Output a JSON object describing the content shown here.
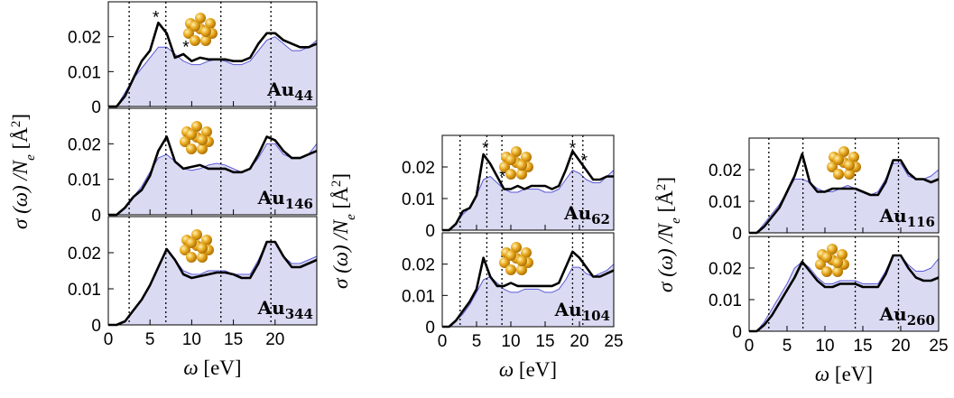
{
  "chart_data": [
    {
      "type": "line",
      "ylabel": [
        "σ (ω) /N",
        "e",
        " [Å",
        "2",
        "]"
      ],
      "xlabel": [
        "ω",
        " [eV]"
      ],
      "xlim": [
        0,
        25
      ],
      "xticks": [
        0,
        5,
        10,
        15,
        20
      ],
      "ylim": [
        0,
        0.03
      ],
      "yticks": [
        0,
        0.01,
        0.02
      ],
      "vlines": [
        2.5,
        6.9,
        13.5,
        19.5
      ],
      "panels": [
        {
          "label": "Au",
          "label_sub": "44",
          "markers": [
            {
              "x": 5.7,
              "y": 0.0265,
              "text": "*"
            },
            {
              "x": 9.3,
              "y": 0.018,
              "text": "*"
            }
          ],
          "x": [
            0,
            1,
            2,
            3,
            4,
            5,
            6,
            7,
            8,
            9,
            10,
            11,
            12,
            13,
            14,
            15,
            16,
            17,
            18,
            19,
            20,
            21,
            22,
            23,
            24,
            25
          ],
          "series": [
            {
              "color": "#5a5ad6",
              "fill": "#dadaf3",
              "values": [
                0,
                0,
                0.004,
                0.008,
                0.011,
                0.014,
                0.017,
                0.017,
                0.015,
                0.013,
                0.012,
                0.012,
                0.013,
                0.0135,
                0.013,
                0.012,
                0.012,
                0.013,
                0.016,
                0.019,
                0.02,
                0.018,
                0.016,
                0.016,
                0.017,
                0.019
              ]
            },
            {
              "color": "#000000",
              "values": [
                0,
                0,
                0.003,
                0.008,
                0.013,
                0.016,
                0.024,
                0.021,
                0.014,
                0.015,
                0.013,
                0.014,
                0.0135,
                0.0135,
                0.0135,
                0.013,
                0.013,
                0.014,
                0.018,
                0.021,
                0.021,
                0.019,
                0.018,
                0.017,
                0.017,
                0.018
              ]
            }
          ]
        },
        {
          "label": "Au",
          "label_sub": "146",
          "x": [
            0,
            1,
            2,
            3,
            4,
            5,
            6,
            7,
            8,
            9,
            10,
            11,
            12,
            13,
            14,
            15,
            16,
            17,
            18,
            19,
            20,
            21,
            22,
            23,
            24,
            25
          ],
          "series": [
            {
              "color": "#5a5ad6",
              "fill": "#dadaf3",
              "values": [
                0,
                0,
                0.002,
                0.005,
                0.008,
                0.012,
                0.016,
                0.017,
                0.015,
                0.013,
                0.0125,
                0.013,
                0.014,
                0.0145,
                0.014,
                0.013,
                0.012,
                0.013,
                0.016,
                0.02,
                0.02,
                0.017,
                0.016,
                0.016,
                0.017,
                0.02
              ]
            },
            {
              "color": "#000000",
              "values": [
                0,
                0,
                0.002,
                0.005,
                0.007,
                0.011,
                0.018,
                0.022,
                0.015,
                0.013,
                0.0135,
                0.014,
                0.013,
                0.013,
                0.013,
                0.012,
                0.012,
                0.013,
                0.017,
                0.022,
                0.021,
                0.018,
                0.016,
                0.016,
                0.017,
                0.018
              ]
            }
          ]
        },
        {
          "label": "Au",
          "label_sub": "344",
          "x": [
            0,
            1,
            2,
            3,
            4,
            5,
            6,
            7,
            8,
            9,
            10,
            11,
            12,
            13,
            14,
            15,
            16,
            17,
            18,
            19,
            20,
            21,
            22,
            23,
            24,
            25
          ],
          "series": [
            {
              "color": "#5a5ad6",
              "fill": "#dadaf3",
              "values": [
                0,
                0,
                0.001,
                0.004,
                0.007,
                0.011,
                0.016,
                0.021,
                0.018,
                0.015,
                0.014,
                0.014,
                0.015,
                0.015,
                0.015,
                0.014,
                0.014,
                0.014,
                0.018,
                0.023,
                0.023,
                0.019,
                0.017,
                0.017,
                0.018,
                0.019
              ]
            },
            {
              "color": "#000000",
              "values": [
                0,
                0,
                0.001,
                0.004,
                0.007,
                0.011,
                0.016,
                0.021,
                0.018,
                0.014,
                0.013,
                0.0135,
                0.014,
                0.0145,
                0.0145,
                0.014,
                0.013,
                0.013,
                0.017,
                0.023,
                0.023,
                0.019,
                0.016,
                0.016,
                0.017,
                0.018
              ]
            }
          ]
        }
      ]
    },
    {
      "type": "line",
      "ylabel": [
        "σ (ω) /N",
        "e",
        " [Å",
        "2",
        "]"
      ],
      "xlabel": [
        "ω",
        " [eV]"
      ],
      "xlim": [
        0,
        25
      ],
      "xticks": [
        0,
        5,
        10,
        15,
        20,
        25
      ],
      "ylim": [
        0,
        0.03
      ],
      "yticks": [
        0,
        0.01,
        0.02
      ],
      "vlines": [
        2.6,
        6.5,
        8.7,
        19,
        20.5
      ],
      "panels": [
        {
          "label": "Au",
          "label_sub": "62",
          "markers": [
            {
              "x": 6.3,
              "y": 0.027,
              "text": "*"
            },
            {
              "x": 8.8,
              "y": 0.018,
              "text": "*"
            },
            {
              "x": 19,
              "y": 0.027,
              "text": "*"
            },
            {
              "x": 20.7,
              "y": 0.023,
              "text": "*"
            }
          ],
          "x": [
            0,
            1,
            2,
            3,
            4,
            5,
            6,
            7,
            8,
            9,
            10,
            11,
            12,
            13,
            14,
            15,
            16,
            17,
            18,
            19,
            20,
            21,
            22,
            23,
            24,
            25
          ],
          "series": [
            {
              "color": "#5a5ad6",
              "fill": "#dadaf3",
              "values": [
                0,
                0,
                0.002,
                0.005,
                0.007,
                0.011,
                0.016,
                0.017,
                0.015,
                0.013,
                0.012,
                0.012,
                0.013,
                0.013,
                0.013,
                0.012,
                0.012,
                0.013,
                0.016,
                0.019,
                0.018,
                0.016,
                0.015,
                0.015,
                0.017,
                0.019
              ]
            },
            {
              "color": "#000000",
              "values": [
                0,
                0,
                0.002,
                0.006,
                0.007,
                0.011,
                0.024,
                0.021,
                0.017,
                0.013,
                0.013,
                0.014,
                0.013,
                0.014,
                0.014,
                0.014,
                0.013,
                0.014,
                0.019,
                0.025,
                0.022,
                0.019,
                0.016,
                0.016,
                0.017,
                0.017
              ]
            }
          ]
        },
        {
          "label": "Au",
          "label_sub": "104",
          "x": [
            0,
            1,
            2,
            3,
            4,
            5,
            6,
            7,
            8,
            9,
            10,
            11,
            12,
            13,
            14,
            15,
            16,
            17,
            18,
            19,
            20,
            21,
            22,
            23,
            24,
            25
          ],
          "series": [
            {
              "color": "#5a5ad6",
              "fill": "#dadaf3",
              "values": [
                0,
                0,
                0.002,
                0.004,
                0.007,
                0.011,
                0.015,
                0.016,
                0.014,
                0.012,
                0.011,
                0.011,
                0.012,
                0.012,
                0.012,
                0.011,
                0.011,
                0.012,
                0.015,
                0.019,
                0.019,
                0.017,
                0.016,
                0.017,
                0.018,
                0.02
              ]
            },
            {
              "color": "#000000",
              "values": [
                0,
                0,
                0.002,
                0.005,
                0.008,
                0.012,
                0.022,
                0.016,
                0.013,
                0.013,
                0.014,
                0.013,
                0.013,
                0.013,
                0.013,
                0.013,
                0.013,
                0.014,
                0.019,
                0.024,
                0.022,
                0.019,
                0.016,
                0.016,
                0.017,
                0.018
              ]
            }
          ]
        }
      ]
    },
    {
      "type": "line",
      "ylabel": [
        "σ (ω) /N",
        "e",
        " [Å",
        "2",
        "]"
      ],
      "xlabel": [
        "ω",
        " [eV]"
      ],
      "xlim": [
        0,
        25
      ],
      "xticks": [
        0,
        5,
        10,
        15,
        20,
        25
      ],
      "ylim": [
        0,
        0.03
      ],
      "yticks": [
        0,
        0.01,
        0.02
      ],
      "vlines": [
        2.6,
        7.1,
        14,
        19.7
      ],
      "panels": [
        {
          "label": "Au",
          "label_sub": "116",
          "x": [
            0,
            1,
            2,
            3,
            4,
            5,
            6,
            7,
            8,
            9,
            10,
            11,
            12,
            13,
            14,
            15,
            16,
            17,
            18,
            19,
            20,
            21,
            22,
            23,
            24,
            25
          ],
          "series": [
            {
              "color": "#5a5ad6",
              "fill": "#dadaf3",
              "values": [
                0,
                0,
                0.003,
                0.006,
                0.009,
                0.013,
                0.017,
                0.017,
                0.016,
                0.014,
                0.013,
                0.013,
                0.014,
                0.015,
                0.014,
                0.013,
                0.012,
                0.013,
                0.017,
                0.022,
                0.022,
                0.018,
                0.017,
                0.017,
                0.018,
                0.02
              ]
            },
            {
              "color": "#000000",
              "values": [
                0,
                0,
                0.002,
                0.005,
                0.008,
                0.013,
                0.018,
                0.025,
                0.016,
                0.013,
                0.013,
                0.014,
                0.014,
                0.014,
                0.014,
                0.013,
                0.012,
                0.012,
                0.016,
                0.023,
                0.023,
                0.019,
                0.017,
                0.017,
                0.016,
                0.017
              ]
            }
          ]
        },
        {
          "label": "Au",
          "label_sub": "260",
          "x": [
            0,
            1,
            2,
            3,
            4,
            5,
            6,
            7,
            8,
            9,
            10,
            11,
            12,
            13,
            14,
            15,
            16,
            17,
            18,
            19,
            20,
            21,
            22,
            23,
            24,
            25
          ],
          "series": [
            {
              "color": "#5a5ad6",
              "fill": "#dadaf3",
              "values": [
                0,
                0,
                0.003,
                0.007,
                0.011,
                0.015,
                0.02,
                0.022,
                0.02,
                0.017,
                0.015,
                0.015,
                0.016,
                0.016,
                0.016,
                0.015,
                0.015,
                0.015,
                0.019,
                0.024,
                0.024,
                0.021,
                0.019,
                0.019,
                0.02,
                0.023
              ]
            },
            {
              "color": "#000000",
              "values": [
                0,
                0,
                0.002,
                0.005,
                0.009,
                0.013,
                0.017,
                0.022,
                0.019,
                0.016,
                0.014,
                0.014,
                0.015,
                0.015,
                0.015,
                0.014,
                0.014,
                0.014,
                0.018,
                0.024,
                0.024,
                0.02,
                0.017,
                0.016,
                0.016,
                0.017
              ]
            }
          ]
        }
      ]
    }
  ]
}
